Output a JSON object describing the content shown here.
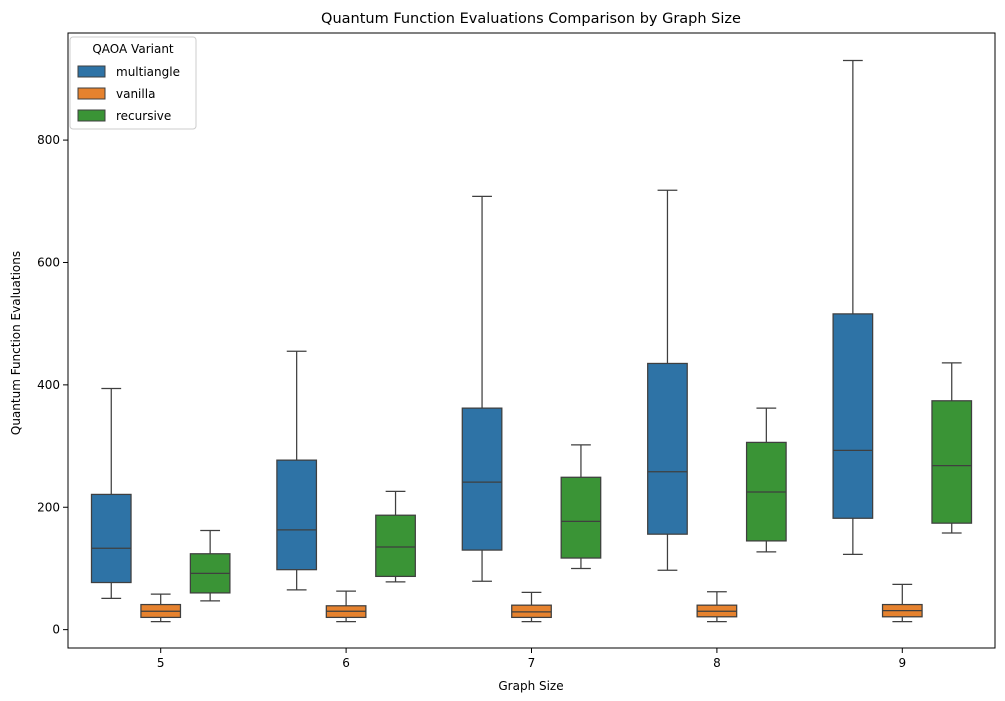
{
  "chart_data": {
    "type": "box",
    "title": "Quantum Function Evaluations Comparison by Graph Size",
    "xlabel": "Graph Size",
    "ylabel": "Quantum Function Evaluations",
    "categories": [
      "5",
      "6",
      "7",
      "8",
      "9"
    ],
    "ylim": [
      -30,
      975
    ],
    "yticks": [
      0,
      200,
      400,
      600,
      800
    ],
    "grid": false,
    "legend": {
      "title": "QAOA Variant",
      "placement": "top-left"
    },
    "series": [
      {
        "name": "multiangle",
        "color": "#2e73a6",
        "boxes": [
          {
            "whislo": 51,
            "q1": 77,
            "med": 133,
            "q3": 221,
            "whishi": 394
          },
          {
            "whislo": 65,
            "q1": 98,
            "med": 163,
            "q3": 277,
            "whishi": 455
          },
          {
            "whislo": 79,
            "q1": 130,
            "med": 241,
            "q3": 362,
            "whishi": 708
          },
          {
            "whislo": 97,
            "q1": 156,
            "med": 258,
            "q3": 435,
            "whishi": 718
          },
          {
            "whislo": 123,
            "q1": 182,
            "med": 293,
            "q3": 516,
            "whishi": 930
          }
        ]
      },
      {
        "name": "vanilla",
        "color": "#e6822e",
        "boxes": [
          {
            "whislo": 13,
            "q1": 20,
            "med": 30,
            "q3": 41,
            "whishi": 58
          },
          {
            "whislo": 13,
            "q1": 20,
            "med": 30,
            "q3": 39,
            "whishi": 63
          },
          {
            "whislo": 13,
            "q1": 20,
            "med": 29,
            "q3": 40,
            "whishi": 61
          },
          {
            "whislo": 13,
            "q1": 21,
            "med": 30,
            "q3": 40,
            "whishi": 62
          },
          {
            "whislo": 13,
            "q1": 21,
            "med": 31,
            "q3": 41,
            "whishi": 74
          }
        ]
      },
      {
        "name": "recursive",
        "color": "#3a9436",
        "boxes": [
          {
            "whislo": 47,
            "q1": 60,
            "med": 92,
            "q3": 124,
            "whishi": 162
          },
          {
            "whislo": 78,
            "q1": 87,
            "med": 135,
            "q3": 187,
            "whishi": 226
          },
          {
            "whislo": 100,
            "q1": 117,
            "med": 177,
            "q3": 249,
            "whishi": 302
          },
          {
            "whislo": 127,
            "q1": 145,
            "med": 225,
            "q3": 306,
            "whishi": 362
          },
          {
            "whislo": 158,
            "q1": 174,
            "med": 268,
            "q3": 374,
            "whishi": 436
          }
        ]
      }
    ]
  }
}
